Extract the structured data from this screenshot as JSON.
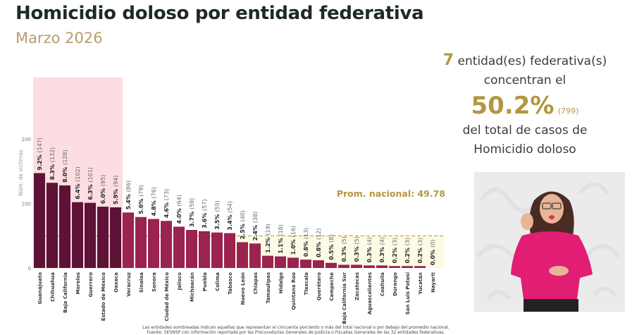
{
  "header": {
    "title": "Homicidio doloso por entidad federativa",
    "subtitle": "Marzo 2026"
  },
  "summary": {
    "count": "7",
    "line1": "entidad(es) federativa(s)",
    "line2": "concentran el",
    "percent": "50.2%",
    "cases": "(799)",
    "line3": "del total de casos de",
    "line4": "Homicidio doloso"
  },
  "colors": {
    "top_bar": "#5e1236",
    "other_bar": "#9a2350",
    "top_shade": "#fbdde2",
    "below_avg_shade": "#fdfbe6",
    "avg_line": "#b3973f",
    "gold": "#b3973f"
  },
  "footnote": {
    "line1": "Las entidades sombreadas indican aquellas que representan el cincuenta porciento o más del total nacional o por debajo del promedio nacional.",
    "line2": "Fuente: SESNSP con información reportada por las Procuradurías Generales de Justicia o Fiscalías Generales de las 32 entidades federativas."
  },
  "video": {
    "label": "Intérprete de lengua de señas"
  },
  "chart_data": {
    "type": "bar",
    "title": "Homicidio doloso por entidad federativa",
    "subtitle": "Marzo 2026",
    "xlabel": "",
    "ylabel": "Núm. de víctimas",
    "ylim": [
      0,
      280
    ],
    "yticks": [
      0,
      100,
      200
    ],
    "grid": false,
    "average": {
      "label": "Prom. nacional: 49.78",
      "value": 49.78
    },
    "top_group_count": 7,
    "categories": [
      "Guanajuato",
      "Chihuahua",
      "Baja California",
      "Morelos",
      "Guerrero",
      "Estado de México",
      "Oaxaca",
      "Veracruz",
      "Sinaloa",
      "Sonora",
      "Ciudad de México",
      "Jalisco",
      "Michoacán",
      "Puebla",
      "Colima",
      "Tabasco",
      "Nuevo León",
      "Chiapas",
      "Tamaulipas",
      "Hidalgo",
      "Quintana Roo",
      "Tlaxcala",
      "Querétaro",
      "Campeche",
      "Baja California Sur",
      "Zacatecas",
      "Aguascalientes",
      "Coahuila",
      "Durango",
      "San Luis Potosí",
      "Yucatán",
      "Nayarit"
    ],
    "values": [
      147,
      132,
      128,
      102,
      101,
      95,
      94,
      86,
      79,
      76,
      73,
      64,
      59,
      57,
      55,
      54,
      40,
      38,
      19,
      18,
      16,
      13,
      12,
      8,
      5,
      5,
      4,
      4,
      3,
      3,
      3,
      0
    ],
    "percents": [
      "9.2%",
      "8.3%",
      "8.0%",
      "6.4%",
      "6.3%",
      "6.0%",
      "5.9%",
      "5.4%",
      "5.0%",
      "4.8%",
      "4.6%",
      "4.0%",
      "3.7%",
      "3.6%",
      "3.5%",
      "3.4%",
      "2.5%",
      "2.4%",
      "1.2%",
      "1.1%",
      "1.0%",
      "0.8%",
      "0.8%",
      "0.5%",
      "0.3%",
      "0.3%",
      "0.3%",
      "0.3%",
      "0.2%",
      "0.2%",
      "0.2%",
      "0.0%"
    ]
  }
}
